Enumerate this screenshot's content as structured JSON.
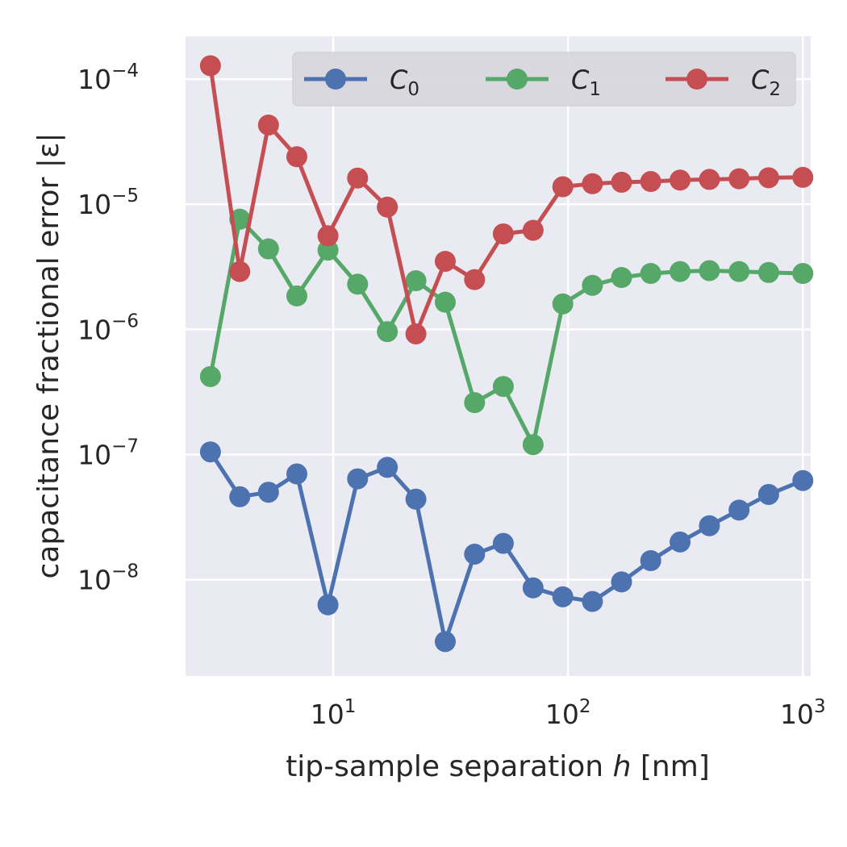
{
  "chart_data": {
    "type": "line",
    "xlabel": "tip-sample separation h [nm]",
    "ylabel": "capacitance fractional error |ε|",
    "xscale": "log",
    "yscale": "log",
    "xlim": [
      2.35,
      1080
    ],
    "ylim": [
      1.7e-09,
      0.00022
    ],
    "xticks": [
      {
        "value": 10,
        "base": "10",
        "exp": "1"
      },
      {
        "value": 100,
        "base": "10",
        "exp": "2"
      },
      {
        "value": 1000,
        "base": "10",
        "exp": "3"
      }
    ],
    "yticks": [
      {
        "value": 1e-08,
        "base": "10",
        "exp": "−8"
      },
      {
        "value": 1e-07,
        "base": "10",
        "exp": "−7"
      },
      {
        "value": 1e-06,
        "base": "10",
        "exp": "−6"
      },
      {
        "value": 1e-05,
        "base": "10",
        "exp": "−5"
      },
      {
        "value": 0.0001,
        "base": "10",
        "exp": "−4"
      }
    ],
    "grid": true,
    "legend_position": "top-right",
    "x": [
      3.0,
      4.0,
      5.3,
      7.0,
      9.5,
      12.7,
      17.0,
      22.5,
      30.0,
      40.0,
      53.0,
      71.0,
      95.0,
      127.0,
      169.0,
      225.0,
      300.0,
      400.0,
      535.0,
      715.0,
      1000.0
    ],
    "series": [
      {
        "name": "C0",
        "name_base": "C",
        "name_sub": "0",
        "color": "#4c72b0",
        "values": [
          1.05e-07,
          4.6e-08,
          5e-08,
          7e-08,
          6.3e-09,
          6.4e-08,
          7.9e-08,
          4.4e-08,
          3.2e-09,
          1.6e-08,
          1.95e-08,
          8.6e-09,
          7.3e-09,
          6.7e-09,
          9.6e-09,
          1.42e-08,
          2e-08,
          2.7e-08,
          3.6e-08,
          4.8e-08,
          6.2e-08
        ]
      },
      {
        "name": "C1",
        "name_base": "C",
        "name_sub": "1",
        "color": "#55a868",
        "values": [
          4.2e-07,
          7.6e-06,
          4.4e-06,
          1.85e-06,
          4.3e-06,
          2.3e-06,
          9.6e-07,
          2.45e-06,
          1.65e-06,
          2.6e-07,
          3.5e-07,
          1.2e-07,
          1.6e-06,
          2.25e-06,
          2.6e-06,
          2.8e-06,
          2.9e-06,
          2.95e-06,
          2.9e-06,
          2.85e-06,
          2.8e-06
        ]
      },
      {
        "name": "C2",
        "name_base": "C",
        "name_sub": "2",
        "color": "#c44e52",
        "values": [
          0.000128,
          2.9e-06,
          4.3e-05,
          2.4e-05,
          5.6e-06,
          1.62e-05,
          9.5e-06,
          9.2e-07,
          3.5e-06,
          2.5e-06,
          5.8e-06,
          6.2e-06,
          1.38e-05,
          1.46e-05,
          1.5e-05,
          1.52e-05,
          1.56e-05,
          1.58e-05,
          1.6e-05,
          1.63e-05,
          1.64e-05
        ]
      }
    ]
  }
}
